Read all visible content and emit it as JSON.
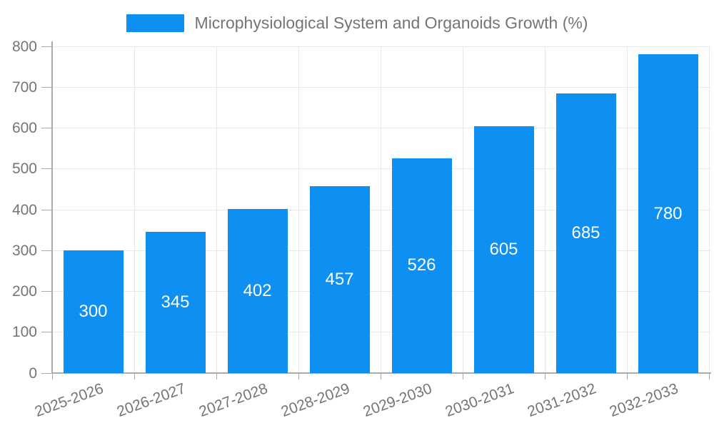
{
  "legend": {
    "label": "Microphysiological System and Organoids Growth (%)"
  },
  "chart_data": {
    "type": "bar",
    "title": "Microphysiological System and Organoids Growth (%)",
    "categories": [
      "2025-2026",
      "2026-2027",
      "2027-2028",
      "2028-2029",
      "2029-2030",
      "2030-2031",
      "2031-2032",
      "2032-2033"
    ],
    "values": [
      300,
      345,
      402,
      457,
      526,
      605,
      685,
      780
    ],
    "xlabel": "",
    "ylabel": "",
    "ylim": [
      0,
      800
    ],
    "yticks": [
      0,
      100,
      200,
      300,
      400,
      500,
      600,
      700,
      800
    ],
    "grid": true,
    "legend_position": "top-center",
    "value_label_position": "inside-center",
    "x_label_rotation_deg": -20,
    "colors": {
      "bar": "#0d90f2",
      "value_label": "#ffffff",
      "axis_line": "#aaaaaa",
      "gridline": "#e8e8e8",
      "tick_label": "#757575",
      "legend_text": "#757575",
      "background": "#ffffff"
    }
  }
}
